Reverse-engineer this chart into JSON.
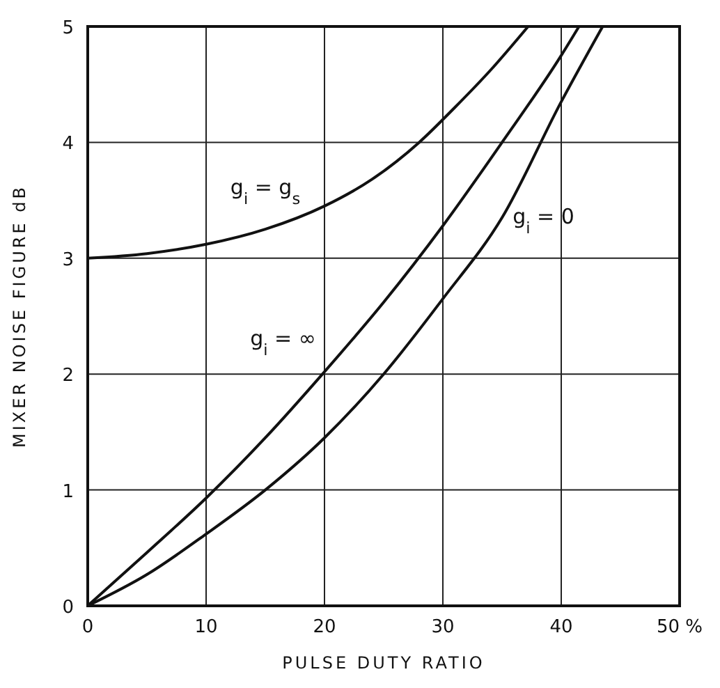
{
  "chart_data": {
    "type": "line",
    "xlabel": "PULSE DUTY RATIO",
    "ylabel": "MIXER NOISE FIGURE dB",
    "xlim": [
      0,
      50
    ],
    "ylim": [
      0,
      5
    ],
    "xticks": [
      0,
      10,
      20,
      30,
      40,
      {
        "value": 50,
        "label": "50 %"
      }
    ],
    "yticks": [
      0,
      1,
      2,
      3,
      4,
      5
    ],
    "grid": true,
    "marker": "none",
    "line_style": "solid",
    "series": [
      {
        "name": "g$_{i}$ = g$_{s}$",
        "color": "#111111",
        "x": [
          0,
          5,
          10,
          15,
          20,
          24,
          28,
          31,
          34,
          37.2
        ],
        "values": [
          3,
          3.04,
          3.12,
          3.25,
          3.45,
          3.68,
          4.0,
          4.3,
          4.62,
          5
        ]
      },
      {
        "name": "g$_{i}$ = ∞",
        "color": "#111111",
        "x": [
          0,
          5,
          10,
          15,
          20,
          25,
          30,
          35,
          40,
          41.5
        ],
        "values": [
          0,
          0.46,
          0.93,
          1.45,
          2.02,
          2.62,
          3.28,
          4.0,
          4.75,
          5
        ]
      },
      {
        "name": "g$_{i}$ = 0",
        "color": "#111111",
        "x": [
          0,
          5,
          10,
          15,
          20,
          25,
          30,
          35,
          40,
          43.5
        ],
        "values": [
          0,
          0.27,
          0.62,
          1.0,
          1.45,
          2.0,
          2.65,
          3.35,
          4.35,
          5
        ]
      }
    ]
  }
}
